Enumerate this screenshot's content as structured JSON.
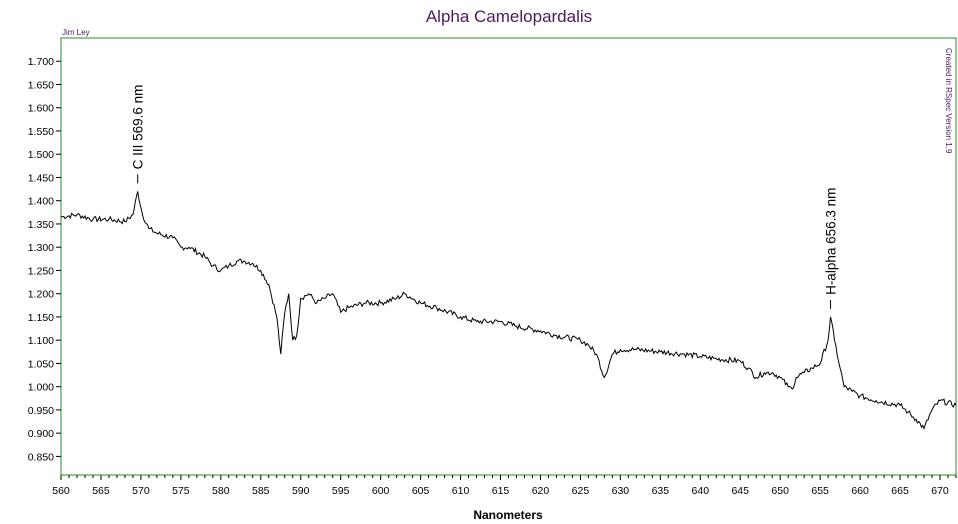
{
  "chart_data": {
    "type": "line",
    "title": "Alpha Camelopardalis",
    "xlabel": "Nanometers",
    "ylabel": "",
    "author": "Jim Ley",
    "credit": "Created in RSpec Version 1.9",
    "xlim": [
      560,
      672
    ],
    "ylim": [
      0.81,
      1.75
    ],
    "x_ticks": [
      560,
      565,
      570,
      575,
      580,
      585,
      590,
      595,
      600,
      605,
      610,
      615,
      620,
      625,
      630,
      635,
      640,
      645,
      650,
      655,
      660,
      665,
      670
    ],
    "y_ticks": [
      0.85,
      0.9,
      0.95,
      1.0,
      1.05,
      1.1,
      1.15,
      1.2,
      1.25,
      1.3,
      1.35,
      1.4,
      1.45,
      1.5,
      1.55,
      1.6,
      1.65,
      1.7
    ],
    "y_tick_labels": [
      "0.850",
      "0.900",
      "0.950",
      "1.000",
      "1.050",
      "1.100",
      "1.150",
      "1.200",
      "1.250",
      "1.300",
      "1.350",
      "1.400",
      "1.450",
      "1.500",
      "1.550",
      "1.600",
      "1.650",
      "1.700"
    ],
    "grid": false,
    "frame_color": "#2e8b2e",
    "title_color": "#4b1a5c",
    "series": [
      {
        "x": [
          560,
          562,
          564,
          566,
          568,
          569,
          569.6,
          570.2,
          571,
          572,
          574,
          575,
          576,
          578,
          579,
          580,
          581,
          582,
          583,
          584,
          585,
          586,
          587,
          587.5,
          588,
          588.5,
          589,
          589.5,
          590,
          591,
          592,
          593,
          594,
          595,
          596,
          598,
          600,
          602,
          603,
          605,
          607,
          610,
          612,
          615,
          617,
          620,
          622,
          625,
          626,
          627,
          628,
          629,
          630,
          632,
          635,
          638,
          640,
          642,
          645,
          646,
          647,
          648,
          649,
          650,
          651,
          651.5,
          652,
          653,
          654,
          655,
          656,
          656.3,
          656.8,
          657.5,
          658,
          659,
          660,
          662,
          665,
          666,
          667,
          668,
          669,
          670,
          672
        ],
        "values": [
          1.365,
          1.37,
          1.36,
          1.36,
          1.355,
          1.37,
          1.42,
          1.37,
          1.34,
          1.33,
          1.32,
          1.3,
          1.3,
          1.28,
          1.26,
          1.25,
          1.26,
          1.27,
          1.27,
          1.265,
          1.25,
          1.22,
          1.15,
          1.07,
          1.16,
          1.2,
          1.1,
          1.11,
          1.19,
          1.2,
          1.18,
          1.19,
          1.2,
          1.16,
          1.17,
          1.18,
          1.18,
          1.19,
          1.2,
          1.18,
          1.17,
          1.15,
          1.14,
          1.14,
          1.13,
          1.12,
          1.11,
          1.1,
          1.09,
          1.07,
          1.02,
          1.07,
          1.08,
          1.08,
          1.075,
          1.07,
          1.065,
          1.06,
          1.055,
          1.04,
          1.02,
          1.03,
          1.03,
          1.02,
          1.0,
          0.995,
          1.02,
          1.03,
          1.04,
          1.05,
          1.1,
          1.15,
          1.1,
          1.04,
          1.0,
          0.99,
          0.98,
          0.97,
          0.96,
          0.945,
          0.93,
          0.91,
          0.95,
          0.97,
          0.96
        ]
      }
    ],
    "annotations": [
      {
        "label": "C III 569.6 nm",
        "x": 569.6,
        "y": 1.42
      },
      {
        "label": "H-alpha 656.3 nm",
        "x": 656.3,
        "y": 1.15
      }
    ]
  }
}
